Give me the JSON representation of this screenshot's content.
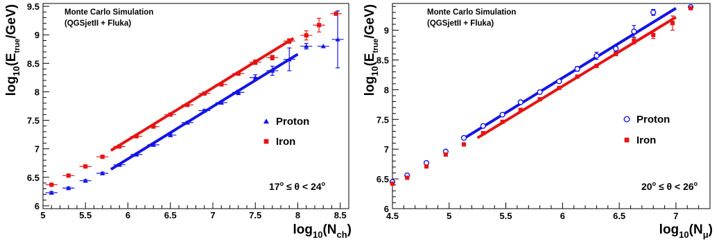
{
  "chart_data": [
    {
      "type": "scatter",
      "title": "",
      "annotation": [
        "Monte Carlo Simulation",
        "(QGSjetII + Fluka)"
      ],
      "xlabel": {
        "base": "log",
        "sub1": "10",
        "paren_open": "(N",
        "sub2": "ch",
        "paren_close": ")"
      },
      "ylabel": {
        "base": "log",
        "sub1": "10",
        "mid": "(E",
        "sub2": "true",
        "tail": "/GeV)"
      },
      "xlim": [
        5,
        8.6
      ],
      "ylim": [
        5.95,
        9.55
      ],
      "xticks": [
        5,
        5.5,
        6,
        6.5,
        7,
        7.5,
        8,
        8.5
      ],
      "xtick_labels": [
        "5",
        "5.5",
        "6",
        "6.5",
        "7",
        "7.5",
        "8",
        "8.5"
      ],
      "yticks": [
        6,
        6.5,
        7,
        7.5,
        8,
        8.5,
        9,
        9.5
      ],
      "ytick_labels": [
        "6",
        "6.5",
        "7",
        "7.5",
        "8",
        "8.5",
        "9",
        "9.5"
      ],
      "cut_label": {
        "lo": "17",
        "op1": " ≤ θ < ",
        "hi": "24",
        "deg": "o"
      },
      "legend": {
        "position": "right"
      },
      "series": [
        {
          "name": "Proton",
          "color": "#1414e6",
          "marker": "triangle",
          "points": [
            [
              5.1,
              6.23
            ],
            [
              5.3,
              6.31
            ],
            [
              5.5,
              6.44
            ],
            [
              5.7,
              6.57
            ],
            [
              5.9,
              6.72
            ],
            [
              6.1,
              6.9
            ],
            [
              6.3,
              7.07
            ],
            [
              6.5,
              7.24
            ],
            [
              6.7,
              7.46
            ],
            [
              6.9,
              7.67
            ],
            [
              7.1,
              7.81
            ],
            [
              7.3,
              7.99
            ],
            [
              7.5,
              8.25
            ],
            [
              7.7,
              8.37
            ],
            [
              7.9,
              8.57
            ],
            [
              8.1,
              8.8
            ],
            [
              8.3,
              8.8
            ],
            [
              8.47,
              8.92
            ]
          ],
          "xerr": 0.07,
          "yerr": [
            0.02,
            0.02,
            0.02,
            0.02,
            0.02,
            0.02,
            0.02,
            0.02,
            0.02,
            0.02,
            0.02,
            0.04,
            0.05,
            0.08,
            0.2,
            0.05,
            0.0,
            0.5
          ],
          "fit": [
            [
              5.8,
              6.64
            ],
            [
              8.0,
              8.66
            ]
          ]
        },
        {
          "name": "Iron",
          "color": "#e61414",
          "marker": "square",
          "points": [
            [
              5.1,
              6.37
            ],
            [
              5.3,
              6.53
            ],
            [
              5.5,
              6.69
            ],
            [
              5.7,
              6.86
            ],
            [
              5.9,
              7.04
            ],
            [
              6.1,
              7.22
            ],
            [
              6.3,
              7.39
            ],
            [
              6.5,
              7.6
            ],
            [
              6.7,
              7.77
            ],
            [
              6.9,
              7.97
            ],
            [
              7.1,
              8.13
            ],
            [
              7.3,
              8.32
            ],
            [
              7.5,
              8.52
            ],
            [
              7.7,
              8.6
            ],
            [
              7.9,
              8.89
            ],
            [
              8.1,
              8.99
            ],
            [
              8.25,
              9.17
            ],
            [
              8.45,
              9.37
            ]
          ],
          "xerr": 0.07,
          "yerr": [
            0.02,
            0.02,
            0.02,
            0.02,
            0.02,
            0.02,
            0.02,
            0.02,
            0.02,
            0.02,
            0.02,
            0.03,
            0.04,
            0.04,
            0.04,
            0.08,
            0.12,
            0.0
          ],
          "fit": [
            [
              5.8,
              6.97
            ],
            [
              7.95,
              8.94
            ]
          ]
        }
      ]
    },
    {
      "type": "scatter",
      "title": "",
      "annotation": [
        "Monte Carlo Simulation",
        "(QGSjetII + Fluka)"
      ],
      "xlabel": {
        "base": "log",
        "sub1": "10",
        "paren_open": "(N",
        "sub2": "μ",
        "paren_close": ")"
      },
      "ylabel": {
        "base": "log",
        "sub1": "10",
        "mid": "(E",
        "sub2": "true",
        "tail": "/GeV)"
      },
      "xlim": [
        4.5,
        7.3
      ],
      "ylim": [
        6.0,
        9.45
      ],
      "xticks": [
        4.5,
        5,
        5.5,
        6,
        6.5,
        7
      ],
      "xtick_labels": [
        "4.5",
        "5",
        "5.5",
        "6",
        "6.5",
        "7"
      ],
      "yticks": [
        6,
        6.5,
        7,
        7.5,
        8,
        8.5,
        9,
        9.5
      ],
      "ytick_labels": [
        "6",
        "6.5",
        "7",
        "7.5",
        "8",
        "8.5",
        "9",
        "9.5"
      ],
      "cut_label": {
        "lo": "20",
        "op1": " ≤ θ < ",
        "hi": "26",
        "deg": "o"
      },
      "legend": {
        "position": "right"
      },
      "series": [
        {
          "name": "Proton",
          "color": "#1414e6",
          "marker": "open-circle",
          "points": [
            [
              4.5,
              6.45
            ],
            [
              4.63,
              6.56
            ],
            [
              4.8,
              6.77
            ],
            [
              4.97,
              6.96
            ],
            [
              5.13,
              7.19
            ],
            [
              5.3,
              7.39
            ],
            [
              5.47,
              7.58
            ],
            [
              5.63,
              7.79
            ],
            [
              5.8,
              7.96
            ],
            [
              5.97,
              8.14
            ],
            [
              6.13,
              8.35
            ],
            [
              6.3,
              8.57
            ],
            [
              6.47,
              8.69
            ],
            [
              6.63,
              8.98
            ],
            [
              6.8,
              9.3
            ],
            [
              7.13,
              9.39
            ]
          ],
          "xerr": 0.0,
          "yerr": [
            0.02,
            0.02,
            0.02,
            0.02,
            0.02,
            0.02,
            0.02,
            0.02,
            0.02,
            0.02,
            0.04,
            0.06,
            0.05,
            0.1,
            0.05,
            0.0
          ],
          "fit": [
            [
              5.13,
              7.18
            ],
            [
              7.0,
              9.37
            ]
          ]
        },
        {
          "name": "Iron",
          "color": "#e61414",
          "marker": "square",
          "points": [
            [
              4.5,
              6.42
            ],
            [
              4.63,
              6.52
            ],
            [
              4.8,
              6.71
            ],
            [
              4.97,
              6.91
            ],
            [
              5.13,
              7.08
            ],
            [
              5.3,
              7.27
            ],
            [
              5.47,
              7.46
            ],
            [
              5.63,
              7.66
            ],
            [
              5.8,
              7.84
            ],
            [
              5.97,
              8.03
            ],
            [
              6.13,
              8.22
            ],
            [
              6.3,
              8.4
            ],
            [
              6.47,
              8.6
            ],
            [
              6.63,
              8.82
            ],
            [
              6.8,
              8.92
            ],
            [
              6.97,
              9.12
            ],
            [
              7.13,
              9.37
            ]
          ],
          "xerr": 0.0,
          "yerr": [
            0.02,
            0.02,
            0.02,
            0.02,
            0.02,
            0.02,
            0.02,
            0.02,
            0.02,
            0.02,
            0.02,
            0.02,
            0.03,
            0.05,
            0.06,
            0.12,
            0.0
          ],
          "fit": [
            [
              5.25,
              7.19
            ],
            [
              7.0,
              9.22
            ]
          ]
        }
      ]
    }
  ]
}
